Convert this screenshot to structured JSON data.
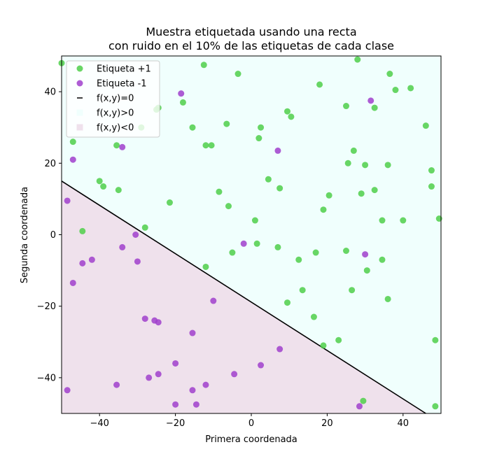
{
  "chart_data": {
    "type": "scatter",
    "title_line1": "Muestra etiquetada usando una recta",
    "title_line2": "con ruido en el 10% de las etiquetas de cada clase",
    "xlabel": "Primera coordenada",
    "ylabel": "Segunda coordenada",
    "xlim": [
      -50,
      50
    ],
    "ylim": [
      -50,
      50
    ],
    "xticks": [
      -40,
      -20,
      0,
      20,
      40
    ],
    "yticks": [
      -40,
      -20,
      0,
      20,
      40
    ],
    "legend_position": "top-left",
    "grid": false,
    "line": {
      "name": "f(x,y)=0",
      "points": [
        [
          -50,
          15
        ],
        [
          46,
          -50
        ]
      ],
      "color": "#000000"
    },
    "regions": [
      {
        "name": "f(x,y)>0",
        "color": "#f0fffd"
      },
      {
        "name": "f(x,y)<0",
        "color": "#efe1ec"
      }
    ],
    "series": [
      {
        "name": "Etiqueta +1",
        "color": "#4fcf4a",
        "points": [
          [
            -50,
            48
          ],
          [
            -47,
            26
          ],
          [
            -44.5,
            1
          ],
          [
            -40,
            15
          ],
          [
            -39,
            13.5
          ],
          [
            -35.5,
            25
          ],
          [
            -35,
            12.5
          ],
          [
            -28,
            2
          ],
          [
            -25,
            35
          ],
          [
            -29,
            30
          ],
          [
            -24.5,
            35.5
          ],
          [
            -21.5,
            9
          ],
          [
            -18,
            37
          ],
          [
            -15.5,
            30
          ],
          [
            -12.5,
            47.5
          ],
          [
            -12,
            25
          ],
          [
            -10.5,
            25
          ],
          [
            -12,
            -9
          ],
          [
            -8.5,
            12
          ],
          [
            -6.5,
            31
          ],
          [
            -6,
            8
          ],
          [
            -5,
            -5
          ],
          [
            -3.5,
            45
          ],
          [
            1,
            4
          ],
          [
            1.5,
            -2.5
          ],
          [
            2,
            27
          ],
          [
            2.5,
            30
          ],
          [
            4.5,
            15.5
          ],
          [
            7,
            -3.5
          ],
          [
            7.5,
            13
          ],
          [
            9.5,
            34.5
          ],
          [
            10.5,
            33
          ],
          [
            9.5,
            -19
          ],
          [
            12.5,
            -7
          ],
          [
            13.5,
            -15.5
          ],
          [
            16.5,
            -23
          ],
          [
            17,
            -5
          ],
          [
            18,
            42
          ],
          [
            19,
            7
          ],
          [
            20.5,
            11
          ],
          [
            19,
            -31
          ],
          [
            23,
            -29.5
          ],
          [
            25,
            36
          ],
          [
            25,
            -4.5
          ],
          [
            25.5,
            20
          ],
          [
            27,
            23.5
          ],
          [
            26.5,
            -15.5
          ],
          [
            28,
            49
          ],
          [
            29,
            11.5
          ],
          [
            30,
            19.5
          ],
          [
            30.5,
            -10
          ],
          [
            32.5,
            12.5
          ],
          [
            32.5,
            35.5
          ],
          [
            34.5,
            -7
          ],
          [
            34.5,
            4
          ],
          [
            36,
            19.5
          ],
          [
            36.5,
            45
          ],
          [
            36,
            -18
          ],
          [
            38,
            40.5
          ],
          [
            40,
            4
          ],
          [
            42,
            41
          ],
          [
            46,
            30.5
          ],
          [
            47.5,
            18
          ],
          [
            47.5,
            13.5
          ],
          [
            48.5,
            -48
          ],
          [
            48.5,
            -29.5
          ],
          [
            49.5,
            4.5
          ],
          [
            29.5,
            -46.5
          ]
        ]
      },
      {
        "name": "Etiqueta -1",
        "color": "#a040cc",
        "points": [
          [
            -48.5,
            9.5
          ],
          [
            -47,
            21
          ],
          [
            -47,
            -13.5
          ],
          [
            -44.5,
            -8
          ],
          [
            -42,
            -7
          ],
          [
            -48.5,
            -43.5
          ],
          [
            -35.5,
            -42
          ],
          [
            -34,
            24.5
          ],
          [
            -34,
            -3.5
          ],
          [
            -30.5,
            0
          ],
          [
            -30,
            -7.5
          ],
          [
            -28,
            -23.5
          ],
          [
            -27,
            -40
          ],
          [
            -25.5,
            -24
          ],
          [
            -24.5,
            -24.5
          ],
          [
            -24.5,
            -39
          ],
          [
            -20,
            -47.5
          ],
          [
            -20,
            -36
          ],
          [
            -18.5,
            39.5
          ],
          [
            -15.5,
            -27.5
          ],
          [
            -15.5,
            -43.5
          ],
          [
            -14.5,
            -47.5
          ],
          [
            -12,
            -42
          ],
          [
            -10,
            -18.5
          ],
          [
            -4.5,
            -39
          ],
          [
            -2,
            -2.5
          ],
          [
            2.5,
            -36.5
          ],
          [
            7,
            23.5
          ],
          [
            7.5,
            -32
          ],
          [
            28.5,
            -48
          ],
          [
            30,
            -5.5
          ],
          [
            31.5,
            37.5
          ]
        ]
      }
    ]
  }
}
